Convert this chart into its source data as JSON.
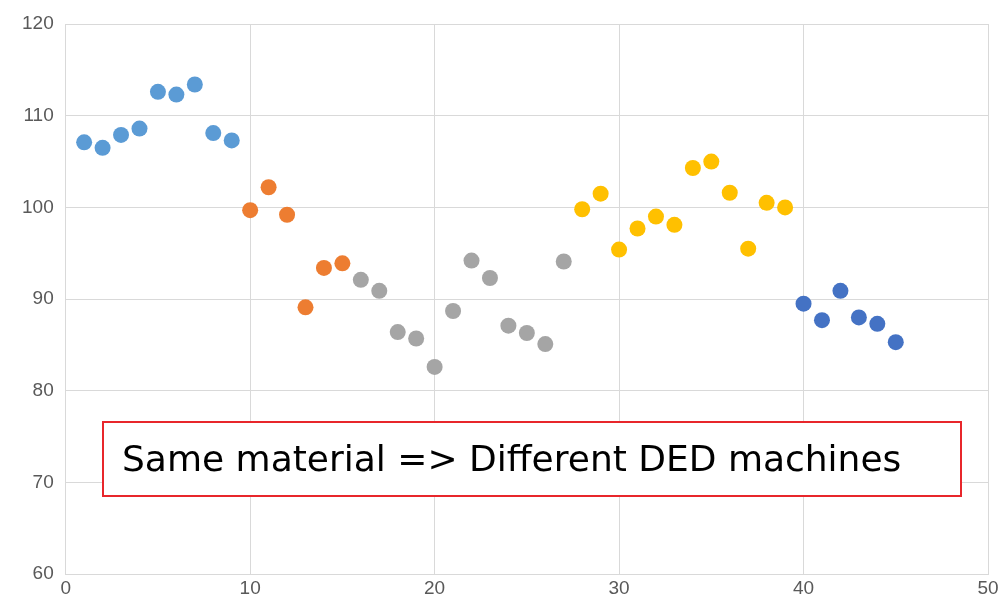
{
  "chart_data": {
    "type": "scatter",
    "xlim": [
      0,
      50
    ],
    "xticks": [
      0,
      10,
      20,
      30,
      40,
      50
    ],
    "ylim": [
      60,
      120
    ],
    "yticks": [
      60,
      70,
      80,
      90,
      100,
      110,
      120
    ],
    "grid": true,
    "legend": false,
    "marker": "circle",
    "series": [
      {
        "color": "#5b9bd5",
        "x": [
          1,
          2,
          3,
          4,
          5,
          6,
          7,
          8,
          9
        ],
        "values": [
          107.1,
          106.5,
          107.9,
          108.6,
          112.6,
          112.3,
          113.4,
          108.1,
          107.3
        ]
      },
      {
        "color": "#ed7d31",
        "x": [
          10,
          11,
          12,
          13,
          14,
          15
        ],
        "values": [
          99.7,
          102.2,
          99.2,
          89.1,
          93.4,
          93.9
        ]
      },
      {
        "color": "#a5a5a5",
        "x": [
          16,
          17,
          18,
          19,
          20,
          21,
          22,
          23,
          24,
          25,
          26,
          27
        ],
        "values": [
          92.1,
          90.9,
          86.4,
          85.7,
          82.6,
          88.7,
          94.2,
          92.3,
          87.1,
          86.3,
          85.1,
          94.1
        ]
      },
      {
        "color": "#ffc000",
        "x": [
          28,
          29,
          30,
          31,
          32,
          33,
          34,
          35,
          36,
          37,
          38,
          39
        ],
        "values": [
          99.8,
          101.5,
          95.4,
          97.7,
          99.0,
          98.1,
          104.3,
          105.0,
          101.6,
          95.5,
          100.5,
          100.0
        ]
      },
      {
        "color": "#4472c4",
        "x": [
          40,
          41,
          42,
          43,
          44,
          45
        ],
        "values": [
          89.5,
          87.7,
          90.9,
          88.0,
          87.3,
          85.3
        ]
      }
    ],
    "annotations": [
      "Same material => Different DED machines"
    ]
  }
}
